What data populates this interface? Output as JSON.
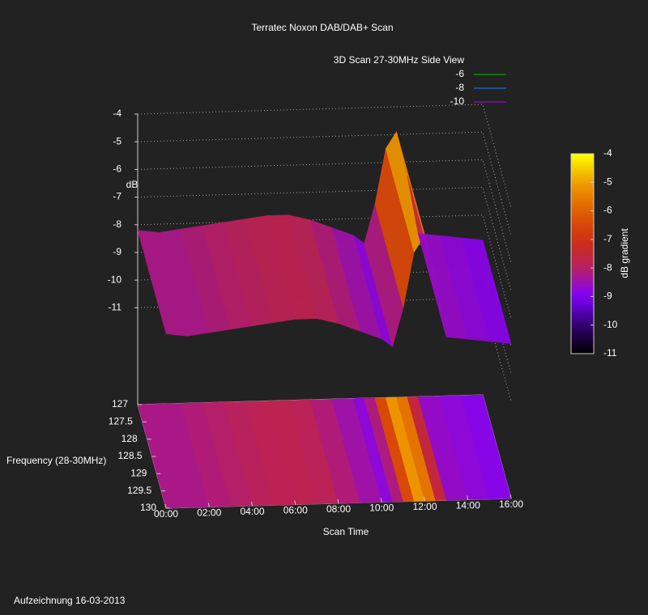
{
  "chart_data": {
    "type": "surface",
    "title": "Terratec Noxon DAB/DAB+ Scan",
    "subtitle": "3D Scan 27-30MHz Side View",
    "legend": [
      {
        "name": "-6",
        "color": "#00c000"
      },
      {
        "name": "-8",
        "color": "#2080ff"
      },
      {
        "name": "-10",
        "color": "#b000ff"
      }
    ],
    "zlabel": "dB",
    "ylabel": "Frequency (28-30MHz)",
    "xlabel": "Scan Time",
    "x": [
      0,
      1,
      2,
      3,
      4,
      5,
      6,
      7,
      8,
      9,
      10,
      10.5,
      11,
      11.5,
      12,
      12.5,
      13,
      14,
      15,
      16
    ],
    "values": [
      -8.2,
      -8.3,
      -8.2,
      -8.1,
      -8.0,
      -7.9,
      -7.8,
      -7.8,
      -8.0,
      -8.3,
      -8.6,
      -8.9,
      -7.5,
      -5.5,
      -4.9,
      -6.5,
      -8.6,
      -8.7,
      -8.8,
      -8.9
    ],
    "xlim": [
      0,
      16
    ],
    "xticks": [
      {
        "value": 0,
        "label": "00:00"
      },
      {
        "value": 2,
        "label": "02:00"
      },
      {
        "value": 4,
        "label": "04:00"
      },
      {
        "value": 6,
        "label": "06:00"
      },
      {
        "value": 8,
        "label": "08:00"
      },
      {
        "value": 10,
        "label": "10:00"
      },
      {
        "value": 12,
        "label": "12:00"
      },
      {
        "value": 14,
        "label": "14:00"
      },
      {
        "value": 16,
        "label": "16:00"
      }
    ],
    "ylim": [
      127,
      130
    ],
    "yticks": [
      127,
      127.5,
      128,
      128.5,
      129,
      129.5,
      130
    ],
    "zlim": [
      -14.5,
      -4
    ],
    "zticks": [
      -4,
      -5,
      -6,
      -7,
      -8,
      -9,
      -10,
      -11
    ],
    "colorbar": {
      "label": "dB gradient",
      "lim": [
        -11,
        -4
      ],
      "ticks": [
        -4,
        -5,
        -6,
        -7,
        -8,
        -9,
        -10,
        -11
      ],
      "colors": [
        "#ffff00",
        "#f0a000",
        "#e06000",
        "#d03010",
        "#b82060",
        "#8000ff",
        "#300070",
        "#000000"
      ]
    },
    "grid": true
  },
  "footer": "Aufzeichnung 16-03-2013"
}
